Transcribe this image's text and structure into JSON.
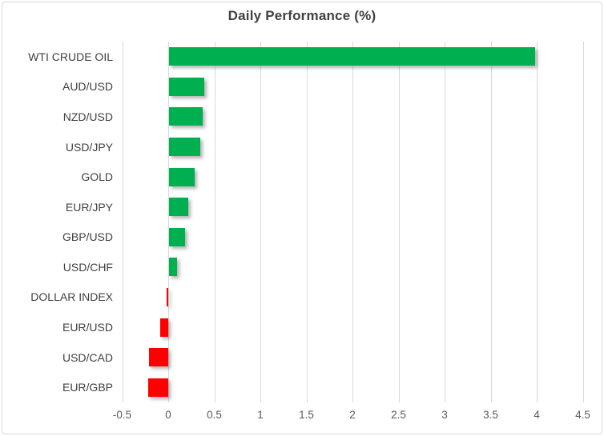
{
  "chart_data": {
    "type": "bar",
    "orientation": "horizontal",
    "title": "Daily Performance (%)",
    "categories": [
      "WTI CRUDE OIL",
      "AUD/USD",
      "NZD/USD",
      "USD/JPY",
      "GOLD",
      "EUR/JPY",
      "GBP/USD",
      "USD/CHF",
      "DOLLAR INDEX",
      "EUR/USD",
      "USD/CAD",
      "EUR/GBP"
    ],
    "values": [
      3.98,
      0.39,
      0.37,
      0.34,
      0.28,
      0.21,
      0.18,
      0.09,
      -0.02,
      -0.09,
      -0.21,
      -0.22
    ],
    "xlabel": "",
    "ylabel": "",
    "xlim": [
      -0.5,
      4.5
    ],
    "xticks": [
      -0.5,
      0,
      0.5,
      1,
      1.5,
      2,
      2.5,
      3,
      3.5,
      4,
      4.5
    ],
    "xtick_labels": [
      "-0.5",
      "0",
      "0.5",
      "1",
      "1.5",
      "2",
      "2.5",
      "3",
      "3.5",
      "4",
      "4.5"
    ],
    "grid": "vertical gridlines on",
    "legend_position": "none",
    "colors": {
      "positive_bar": "#00B050",
      "negative_bar": "#FF0000",
      "gridline": "#D9D9D9",
      "title_text": "#404040",
      "category_text": "#404040",
      "tick_text": "#595959",
      "frame_border": "#D9D9D9",
      "background": "#FFFFFF"
    }
  }
}
